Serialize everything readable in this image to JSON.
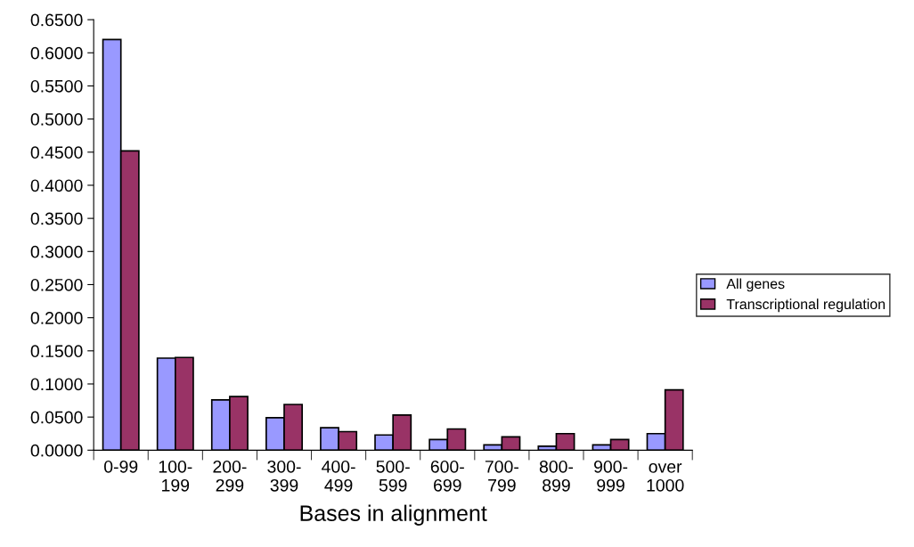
{
  "chart_data": {
    "type": "bar",
    "xlabel": "Bases in alignment",
    "categories": [
      "0-99",
      "100-\n199",
      "200-\n299",
      "300-\n399",
      "400-\n499",
      "500-\n599",
      "600-\n699",
      "700-\n799",
      "800-\n899",
      "900-\n999",
      "over\n1000"
    ],
    "series": [
      {
        "name": "All genes",
        "color": "#9999ff",
        "values": [
          0.62,
          0.139,
          0.076,
          0.049,
          0.034,
          0.023,
          0.016,
          0.008,
          0.006,
          0.008,
          0.025
        ]
      },
      {
        "name": "Transcriptional regulation",
        "color": "#993366",
        "values": [
          0.452,
          0.14,
          0.081,
          0.069,
          0.028,
          0.053,
          0.032,
          0.02,
          0.025,
          0.016,
          0.091
        ]
      }
    ],
    "ylim": [
      0,
      0.65
    ],
    "yticks": [
      {
        "value": 0,
        "label": "0.0000"
      },
      {
        "value": 0.05,
        "label": "0.0500"
      },
      {
        "value": 0.1,
        "label": "0.1000"
      },
      {
        "value": 0.15,
        "label": "0.1500"
      },
      {
        "value": 0.2,
        "label": "0.2000"
      },
      {
        "value": 0.25,
        "label": "0.2500"
      },
      {
        "value": 0.3,
        "label": "0.3000"
      },
      {
        "value": 0.35,
        "label": "0.3500"
      },
      {
        "value": 0.4,
        "label": "0.4000"
      },
      {
        "value": 0.45,
        "label": "0.4500"
      },
      {
        "value": 0.5,
        "label": "0.5000"
      },
      {
        "value": 0.55,
        "label": "0.5500"
      },
      {
        "value": 0.6,
        "label": "0.6000"
      },
      {
        "value": 0.65,
        "label": "0.6500"
      }
    ],
    "grid": false,
    "legend": "right"
  }
}
